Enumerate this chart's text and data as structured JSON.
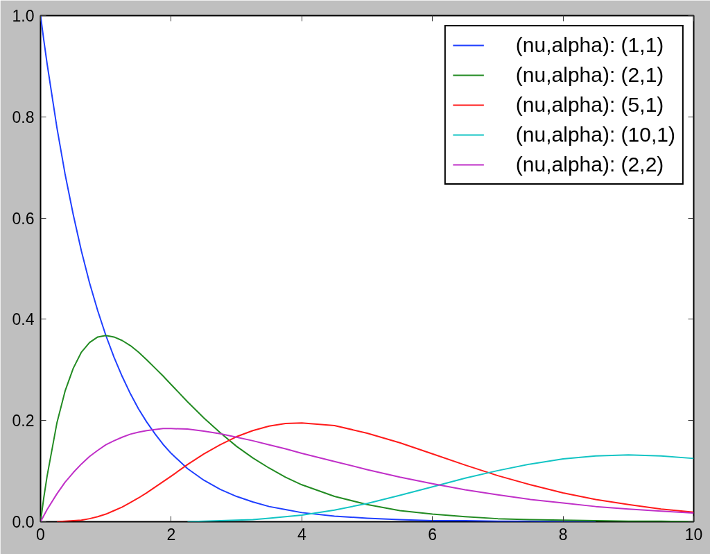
{
  "chart_data": {
    "type": "line",
    "x": [
      0,
      0.05,
      0.1,
      0.25,
      0.375,
      0.5,
      0.625,
      0.75,
      0.875,
      1,
      1.125,
      1.25,
      1.375,
      1.5,
      1.625,
      1.75,
      1.875,
      2,
      2.25,
      2.5,
      2.75,
      3,
      3.25,
      3.5,
      3.75,
      4,
      4.5,
      5,
      5.5,
      6,
      6.5,
      7,
      7.5,
      8,
      8.5,
      9,
      9.5,
      10
    ],
    "series": [
      {
        "name": "(nu,alpha): (1,1)",
        "color": "#1f3fff",
        "values": [
          1.0,
          0.951,
          0.905,
          0.779,
          0.687,
          0.607,
          0.535,
          0.472,
          0.417,
          0.368,
          0.325,
          0.287,
          0.253,
          0.223,
          0.197,
          0.174,
          0.153,
          0.135,
          0.105,
          0.082,
          0.064,
          0.05,
          0.039,
          0.03,
          0.024,
          0.018,
          0.011,
          0.007,
          0.004,
          0.002,
          0.002,
          0.001,
          0.001,
          0.0,
          0.0,
          null,
          null,
          null
        ]
      },
      {
        "name": "(nu,alpha): (2,1)",
        "color": "#228b22",
        "values": [
          0.0,
          0.048,
          0.09,
          0.195,
          0.258,
          0.303,
          0.335,
          0.354,
          0.365,
          0.368,
          0.365,
          0.358,
          0.348,
          0.335,
          0.32,
          0.304,
          0.288,
          0.271,
          0.237,
          0.205,
          0.176,
          0.149,
          0.126,
          0.106,
          0.088,
          0.073,
          0.05,
          0.034,
          0.022,
          0.015,
          0.01,
          0.006,
          0.004,
          0.003,
          0.002,
          0.001,
          0.001,
          0.0
        ]
      },
      {
        "name": "(nu,alpha): (5,1)",
        "color": "#ff1a1a",
        "values": [
          null,
          null,
          null,
          0.0,
          0.001,
          0.002,
          0.003,
          0.006,
          0.01,
          0.015,
          0.022,
          0.029,
          0.038,
          0.047,
          0.057,
          0.068,
          0.079,
          0.09,
          0.113,
          0.134,
          0.152,
          0.168,
          0.18,
          0.189,
          0.194,
          0.195,
          0.19,
          0.175,
          0.156,
          0.134,
          0.112,
          0.091,
          0.073,
          0.057,
          0.044,
          0.034,
          0.025,
          0.019
        ]
      },
      {
        "name": "(nu,alpha): (10,1)",
        "color": "#12c4c4",
        "values": [
          null,
          null,
          null,
          null,
          null,
          null,
          null,
          null,
          null,
          null,
          null,
          null,
          null,
          null,
          null,
          null,
          null,
          null,
          0.0,
          0.001,
          0.002,
          0.003,
          0.004,
          0.007,
          0.01,
          0.013,
          0.023,
          0.036,
          0.052,
          0.069,
          0.086,
          0.101,
          0.114,
          0.124,
          0.13,
          0.132,
          0.13,
          0.125
        ]
      },
      {
        "name": "(nu,alpha): (2,2)",
        "color": "#c030c8",
        "values": [
          0.0,
          0.012,
          0.024,
          0.055,
          0.078,
          0.097,
          0.114,
          0.129,
          0.141,
          0.152,
          0.16,
          0.167,
          0.173,
          0.177,
          0.18,
          0.182,
          0.184,
          0.184,
          0.183,
          0.179,
          0.174,
          0.167,
          0.16,
          0.152,
          0.144,
          0.135,
          0.119,
          0.103,
          0.088,
          0.075,
          0.063,
          0.053,
          0.044,
          0.037,
          0.03,
          0.025,
          0.021,
          0.017
        ]
      }
    ],
    "xlim": [
      0,
      10
    ],
    "ylim": [
      0,
      1
    ],
    "xticks": [
      0,
      2,
      4,
      6,
      8,
      10
    ],
    "yticks": [
      {
        "value": 0,
        "label": "0.0"
      },
      0.2,
      0.4,
      0.6,
      0.8,
      {
        "value": 1,
        "label": "1.0"
      }
    ],
    "legend": "top right",
    "line_style": "solid"
  }
}
